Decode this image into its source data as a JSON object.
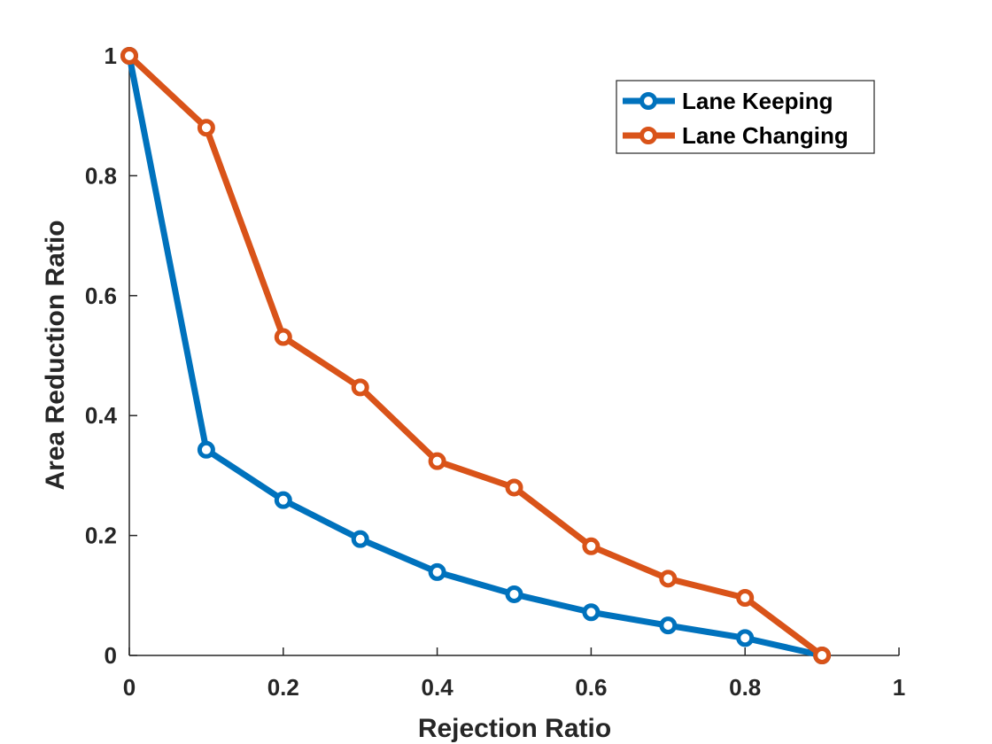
{
  "chart_data": {
    "type": "line",
    "title": "",
    "xlabel": "Rejection Ratio",
    "ylabel": "Area Reduction Ratio",
    "xlim": [
      0,
      1
    ],
    "ylim": [
      0,
      1
    ],
    "xticks": [
      0,
      0.2,
      0.4,
      0.6,
      0.8,
      1
    ],
    "xtick_labels": [
      "0",
      "0.2",
      "0.4",
      "0.6",
      "0.8",
      "1"
    ],
    "yticks": [
      0,
      0.2,
      0.4,
      0.6,
      0.8,
      1
    ],
    "ytick_labels": [
      "0",
      "0.2",
      "0.4",
      "0.6",
      "0.8",
      "1"
    ],
    "grid": false,
    "legend_position": "top-right",
    "x": [
      0,
      0.1,
      0.2,
      0.3,
      0.4,
      0.5,
      0.6,
      0.7,
      0.8,
      0.9
    ],
    "series": [
      {
        "name": "Lane Keeping",
        "color": "#0072BD",
        "values": [
          1.0,
          0.343,
          0.259,
          0.194,
          0.139,
          0.102,
          0.072,
          0.05,
          0.029,
          0.0
        ]
      },
      {
        "name": "Lane Changing",
        "color": "#D95319",
        "values": [
          1.0,
          0.88,
          0.531,
          0.447,
          0.324,
          0.28,
          0.182,
          0.128,
          0.096,
          0.0
        ]
      }
    ]
  }
}
